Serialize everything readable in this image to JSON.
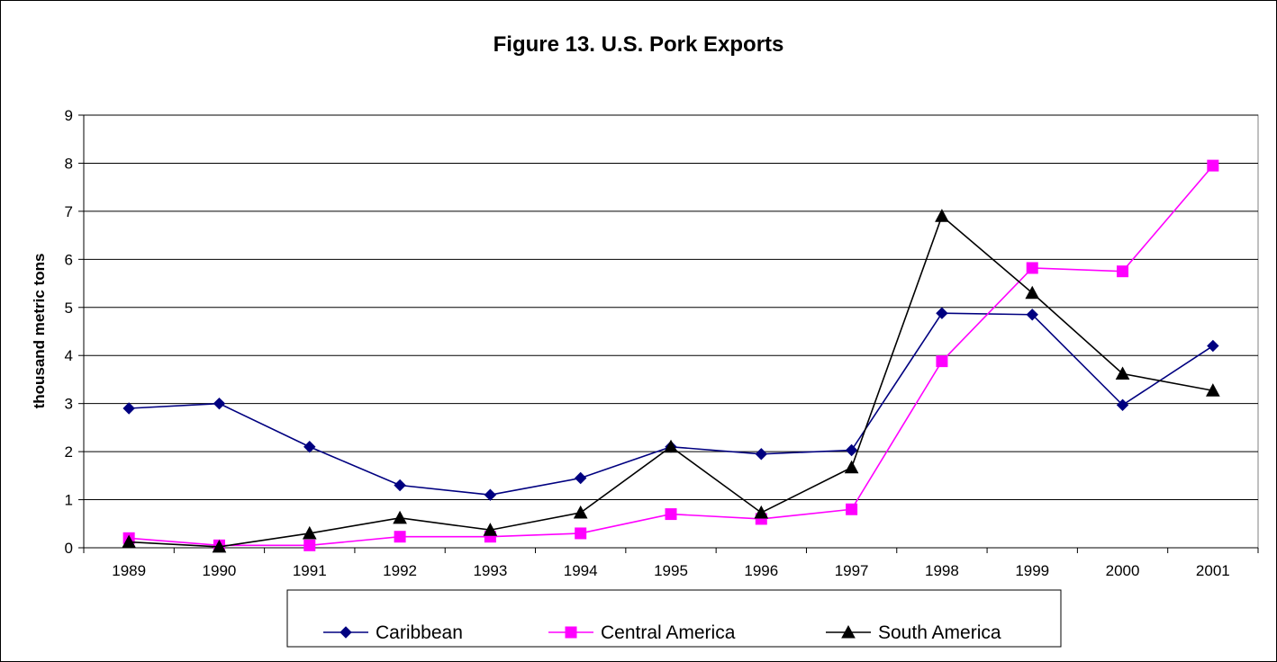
{
  "chart_data": {
    "type": "line",
    "title": "Figure 13. U.S. Pork Exports",
    "xlabel": "",
    "ylabel": "thousand metric tons",
    "categories": [
      "1989",
      "1990",
      "1991",
      "1992",
      "1993",
      "1994",
      "1995",
      "1996",
      "1997",
      "1998",
      "1999",
      "2000",
      "2001"
    ],
    "ylim": [
      0,
      9
    ],
    "yticks": [
      0,
      1,
      2,
      3,
      4,
      5,
      6,
      7,
      8,
      9
    ],
    "grid": "horizontal",
    "legend_position": "bottom",
    "series": [
      {
        "name": "Caribbean",
        "color": "#000080",
        "marker": "diamond",
        "values": [
          2.9,
          3.0,
          2.1,
          1.3,
          1.1,
          1.45,
          2.1,
          1.95,
          2.03,
          4.88,
          4.85,
          2.97,
          4.2
        ]
      },
      {
        "name": "Central America",
        "color": "#FF00FF",
        "marker": "square",
        "values": [
          0.2,
          0.05,
          0.05,
          0.23,
          0.23,
          0.3,
          0.7,
          0.6,
          0.8,
          3.88,
          5.82,
          5.75,
          7.95
        ]
      },
      {
        "name": "South America",
        "color": "#000000",
        "marker": "triangle",
        "values": [
          0.12,
          0.02,
          0.3,
          0.62,
          0.37,
          0.73,
          2.1,
          0.73,
          1.67,
          6.9,
          5.3,
          3.62,
          3.27
        ]
      }
    ]
  }
}
